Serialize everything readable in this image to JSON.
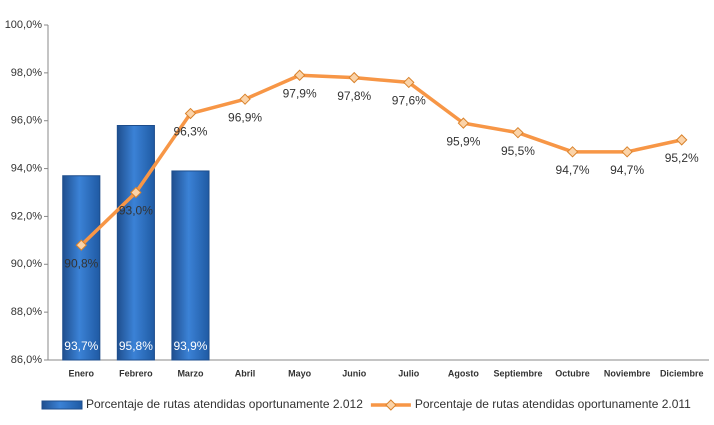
{
  "chart_data": {
    "type": "combo",
    "categories": [
      "Enero",
      "Febrero",
      "Marzo",
      "Abril",
      "Mayo",
      "Junio",
      "Julio",
      "Agosto",
      "Septiembre",
      "Octubre",
      "Noviembre",
      "Diciembre"
    ],
    "series": [
      {
        "name": "Porcentaje de rutas atendidas oportunamente 2.012",
        "type": "bar",
        "color": "#2f6fbf",
        "values": [
          93.7,
          95.8,
          93.9,
          null,
          null,
          null,
          null,
          null,
          null,
          null,
          null,
          null
        ],
        "value_labels": [
          "93,7%",
          "95,8%",
          "93,9%",
          null,
          null,
          null,
          null,
          null,
          null,
          null,
          null,
          null
        ]
      },
      {
        "name": "Porcentaje de rutas atendidas oportunamente 2.011",
        "type": "line",
        "color": "#f79646",
        "values": [
          90.8,
          93.0,
          96.3,
          96.9,
          97.9,
          97.8,
          97.6,
          95.9,
          95.5,
          94.7,
          94.7,
          95.2
        ],
        "value_labels": [
          "90,8%",
          "93,0%",
          "96,3%",
          "96,9%",
          "97,9%",
          "97,8%",
          "97,6%",
          "95,9%",
          "95,5%",
          "94,7%",
          "94,7%",
          "95,2%"
        ]
      }
    ],
    "ylim": [
      86,
      100
    ],
    "yticks": [
      {
        "value": 86,
        "label": "86,0%"
      },
      {
        "value": 88,
        "label": "88,0%"
      },
      {
        "value": 90,
        "label": "90,0%"
      },
      {
        "value": 92,
        "label": "92,0%"
      },
      {
        "value": 94,
        "label": "94,0%"
      },
      {
        "value": 96,
        "label": "96,0%"
      },
      {
        "value": 98,
        "label": "98,0%"
      },
      {
        "value": 100,
        "label": "100,0%"
      }
    ],
    "legend": "bottom"
  }
}
